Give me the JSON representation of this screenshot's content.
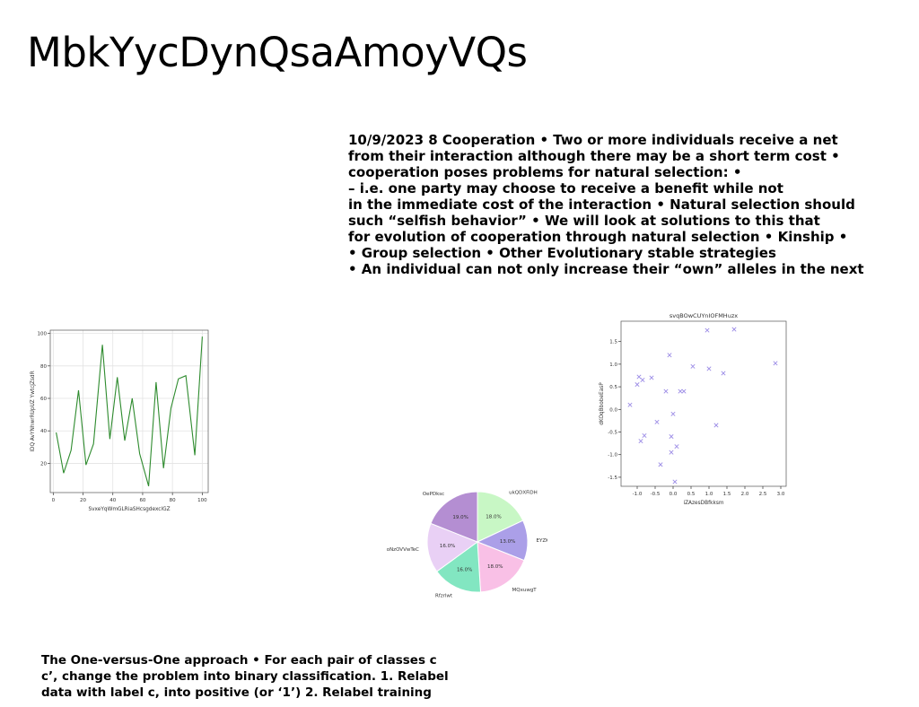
{
  "slide": {
    "title": "MbkYycDynQsaAmoyVQs",
    "body_lines": [
      "10/9/2023 8 Cooperation • Two or more individuals receive a net",
      "from their interaction although there may be a short term cost •",
      "cooperation poses problems for natural selection: •",
      "– i.e. one party may choose to receive a benefit while not",
      "in the immediate cost of the interaction • Natural selection should",
      "such “selfish behavior” • We will look at solutions to this that",
      "for evolution of cooperation through natural selection • Kinship •",
      "• Group selection • Other Evolutionary stable strategies",
      "• An individual can not only increase their “own” alleles in the next"
    ],
    "footer_lines": [
      "The One-versus-One approach • For each pair of classes c",
      "c’, change the problem into binary classification. 1. Relabel",
      "data with label c, into positive (or ‘1’) 2. Relabel training"
    ]
  },
  "chart_data": [
    {
      "type": "line",
      "title": "",
      "xlabel": "SvxeYqWmGLRiaSHcsgdexclGZ",
      "ylabel": "lDQ AvYNhwrRUpUZ YwtcjZsdR",
      "x": [
        2,
        7,
        12,
        17,
        22,
        27,
        33,
        38,
        43,
        48,
        53,
        58,
        64,
        69,
        74,
        79,
        84,
        89,
        95,
        100
      ],
      "values": [
        39,
        14,
        28,
        65,
        19,
        32,
        93,
        35,
        73,
        34,
        60,
        26,
        6,
        70,
        17,
        54,
        72,
        74,
        25,
        98
      ],
      "xlim": [
        -2,
        104
      ],
      "ylim": [
        2,
        102
      ],
      "xticks": [
        0,
        20,
        40,
        60,
        80,
        100
      ],
      "yticks": [
        20,
        40,
        60,
        80,
        100
      ],
      "grid": true,
      "color": "#2e8b2e"
    },
    {
      "type": "pie",
      "title": "",
      "labels": [
        "ukQDXFiDH",
        "EYZKtSIu",
        "MQxuwgT",
        "Rfzrlwt",
        "oNzOVVwTeC",
        "OePDksc"
      ],
      "values": [
        18.0,
        13.0,
        18.0,
        16.0,
        16.0,
        19.0
      ],
      "pct_labels": [
        "18.0%",
        "13.0%",
        "18.0%",
        "16.0%",
        "16.0%",
        "19.0%"
      ],
      "colors": [
        "#c8f7c5",
        "#ab9fe8",
        "#f9c0e6",
        "#82e6c1",
        "#e9d0f5",
        "#b48ed2"
      ]
    },
    {
      "type": "scatter",
      "title": "svqBOwCUYnIOFMHuzx",
      "xlabel": "iZAzesDBfkksm",
      "ylabel": "dKOqBbobeEasP",
      "x": [
        -1.2,
        -1.0,
        -0.95,
        -0.9,
        -0.85,
        -0.8,
        -0.6,
        -0.45,
        -0.35,
        -0.2,
        -0.1,
        -0.05,
        -0.05,
        0.0,
        0.05,
        0.1,
        0.2,
        0.3,
        0.55,
        0.95,
        1.0,
        1.2,
        1.4,
        1.7,
        2.85
      ],
      "y": [
        0.1,
        0.55,
        0.72,
        -0.7,
        0.65,
        -0.58,
        0.7,
        -0.28,
        -1.22,
        0.4,
        1.2,
        -0.6,
        -0.95,
        -0.1,
        -1.6,
        -0.82,
        0.4,
        0.4,
        0.95,
        1.75,
        0.9,
        -0.35,
        0.8,
        1.77,
        1.02
      ],
      "xlim": [
        -1.45,
        3.15
      ],
      "ylim": [
        -1.7,
        1.95
      ],
      "xticks": [
        "-1.0",
        "-0.5",
        "0.0",
        "0.5",
        "1.0",
        "1.5",
        "2.0",
        "2.5",
        "3.0"
      ],
      "yticks": [
        "-1.5",
        "-1.0",
        "-0.5",
        "0.0",
        "0.5",
        "1.0",
        "1.5"
      ],
      "grid": false,
      "marker": "x",
      "color": "#9c8ce6"
    }
  ]
}
